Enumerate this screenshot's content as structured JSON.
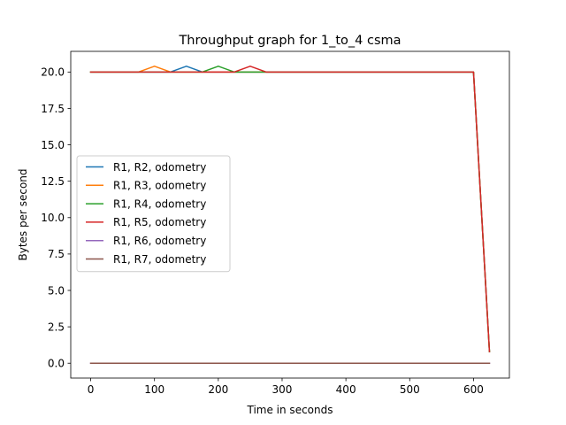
{
  "chart_data": {
    "type": "line",
    "title": "Throughput graph for 1_to_4 csma",
    "xlabel": "Time in seconds",
    "ylabel": "Bytes per second",
    "xlim": [
      -31.25,
      656.25
    ],
    "ylim": [
      -1.02,
      21.42
    ],
    "xticks": [
      0,
      100,
      200,
      300,
      400,
      500,
      600
    ],
    "yticks": [
      0.0,
      2.5,
      5.0,
      7.5,
      10.0,
      12.5,
      15.0,
      17.5,
      20.0
    ],
    "ytick_labels": [
      "0.0",
      "2.5",
      "5.0",
      "7.5",
      "10.0",
      "12.5",
      "15.0",
      "17.5",
      "20.0"
    ],
    "grid": false,
    "legend_position": "center-left",
    "series": [
      {
        "name": "R1, R2, odometry",
        "color": "#1f77b4",
        "x": [
          0,
          25,
          50,
          75,
          100,
          125,
          150,
          175,
          200,
          225,
          250,
          275,
          300,
          325,
          350,
          375,
          400,
          425,
          450,
          475,
          500,
          525,
          550,
          575,
          600,
          625
        ],
        "y": [
          20,
          20,
          20,
          20,
          20,
          20,
          20.4,
          20,
          20,
          20,
          20,
          20,
          20,
          20,
          20,
          20,
          20,
          20,
          20,
          20,
          20,
          20,
          20,
          20,
          20,
          0.8
        ]
      },
      {
        "name": "R1, R3, odometry",
        "color": "#ff7f0e",
        "x": [
          0,
          25,
          50,
          75,
          100,
          125,
          150,
          175,
          200,
          225,
          250,
          275,
          300,
          325,
          350,
          375,
          400,
          425,
          450,
          475,
          500,
          525,
          550,
          575,
          600,
          625
        ],
        "y": [
          20,
          20,
          20,
          20,
          20.4,
          20,
          20,
          20,
          20,
          20,
          20,
          20,
          20,
          20,
          20,
          20,
          20,
          20,
          20,
          20,
          20,
          20,
          20,
          20,
          20,
          0.8
        ]
      },
      {
        "name": "R1, R4, odometry",
        "color": "#2ca02c",
        "x": [
          0,
          25,
          50,
          75,
          100,
          125,
          150,
          175,
          200,
          225,
          250,
          275,
          300,
          325,
          350,
          375,
          400,
          425,
          450,
          475,
          500,
          525,
          550,
          575,
          600,
          625
        ],
        "y": [
          20,
          20,
          20,
          20,
          20,
          20,
          20,
          20,
          20.4,
          20,
          20,
          20,
          20,
          20,
          20,
          20,
          20,
          20,
          20,
          20,
          20,
          20,
          20,
          20,
          20,
          0.8
        ]
      },
      {
        "name": "R1, R5, odometry",
        "color": "#d62728",
        "x": [
          0,
          25,
          50,
          75,
          100,
          125,
          150,
          175,
          200,
          225,
          250,
          275,
          300,
          325,
          350,
          375,
          400,
          425,
          450,
          475,
          500,
          525,
          550,
          575,
          600,
          625
        ],
        "y": [
          20,
          20,
          20,
          20,
          20,
          20,
          20,
          20,
          20,
          20,
          20.4,
          20,
          20,
          20,
          20,
          20,
          20,
          20,
          20,
          20,
          20,
          20,
          20,
          20,
          20,
          0.8
        ]
      },
      {
        "name": "R1, R6, odometry",
        "color": "#9467bd",
        "x": [
          0,
          625
        ],
        "y": [
          0,
          0
        ]
      },
      {
        "name": "R1, R7, odometry",
        "color": "#8c564b",
        "x": [
          0,
          625
        ],
        "y": [
          0,
          0
        ]
      }
    ]
  }
}
